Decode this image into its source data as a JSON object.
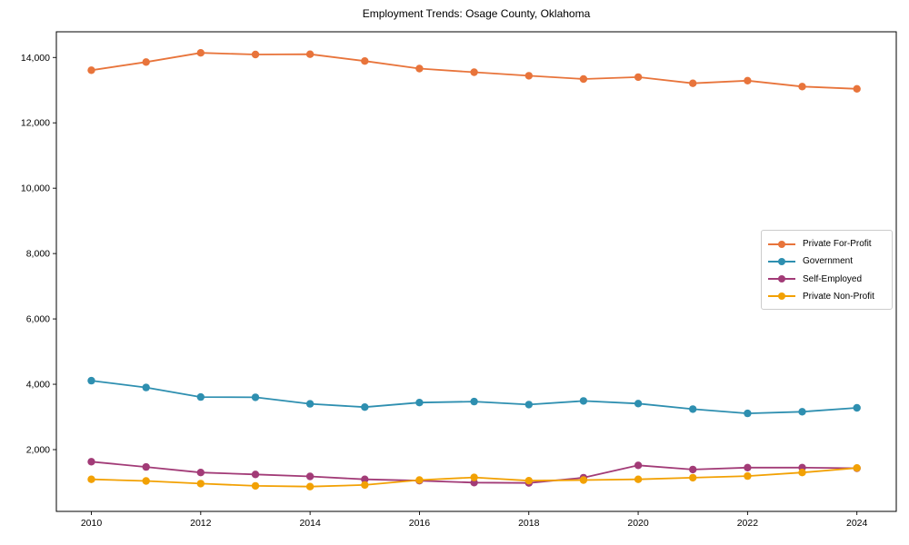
{
  "title": "Employment Trends: Osage County, Oklahoma",
  "chart_data": {
    "type": "line",
    "title": "Employment Trends: Osage County, Oklahoma",
    "xlabel": "",
    "ylabel": "",
    "x": [
      2010,
      2011,
      2012,
      2013,
      2014,
      2015,
      2016,
      2017,
      2018,
      2019,
      2020,
      2021,
      2022,
      2023,
      2024
    ],
    "series": [
      {
        "name": "Private For-Profit",
        "color": "#E8743B",
        "values": [
          13610,
          13860,
          14140,
          14090,
          14100,
          13890,
          13660,
          13550,
          13440,
          13340,
          13400,
          13210,
          13290,
          13110,
          13040
        ]
      },
      {
        "name": "Government",
        "color": "#2E8FB0",
        "values": [
          4110,
          3900,
          3610,
          3600,
          3400,
          3300,
          3440,
          3470,
          3380,
          3490,
          3410,
          3240,
          3110,
          3160,
          3280
        ]
      },
      {
        "name": "Self-Employed",
        "color": "#A23B77",
        "values": [
          1630,
          1470,
          1300,
          1240,
          1180,
          1090,
          1050,
          990,
          980,
          1140,
          1520,
          1390,
          1450,
          1450,
          1430
        ]
      },
      {
        "name": "Private Non-Profit",
        "color": "#F2A104",
        "values": [
          1090,
          1040,
          960,
          890,
          870,
          920,
          1070,
          1150,
          1050,
          1070,
          1090,
          1140,
          1190,
          1300,
          1440
        ]
      }
    ],
    "xticks": [
      2010,
      2012,
      2014,
      2016,
      2018,
      2020,
      2022,
      2024
    ],
    "xticklabels": [
      "2010",
      "2012",
      "2014",
      "2016",
      "2018",
      "2020",
      "2022",
      "2024"
    ],
    "yticks": [
      2000,
      4000,
      6000,
      8000,
      10000,
      12000,
      14000
    ],
    "yticklabels": [
      "2,000",
      "4,000",
      "6,000",
      "8,000",
      "10,000",
      "12,000",
      "14,000"
    ],
    "xlim": [
      2009.36,
      2024.72
    ],
    "ylim": [
      110,
      14786
    ],
    "grid": false,
    "legend_position": "center right",
    "marker": "o",
    "frame_color": "#000000"
  }
}
